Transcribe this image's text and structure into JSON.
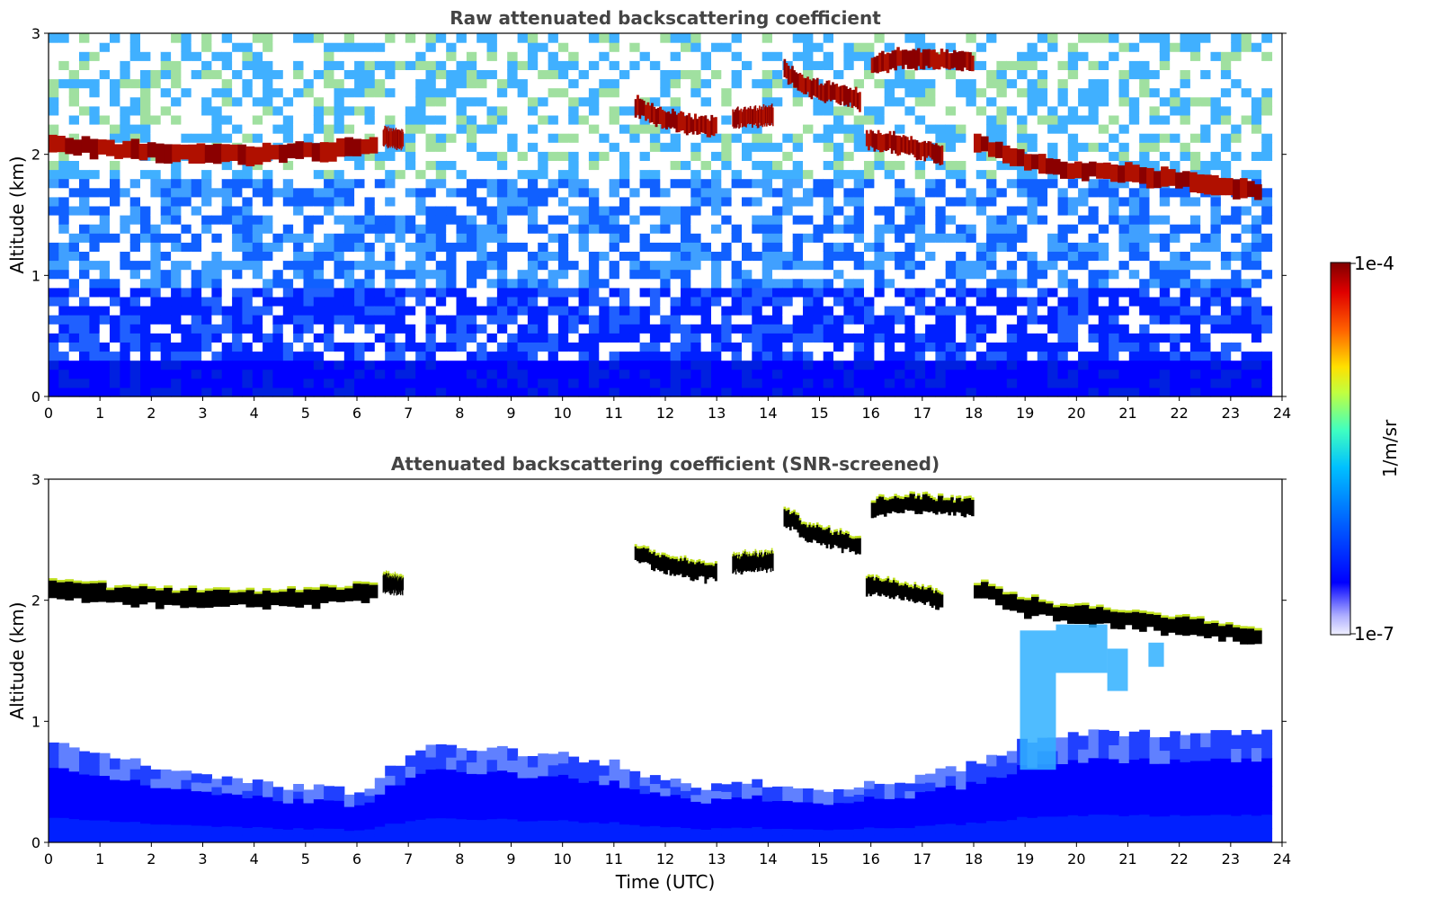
{
  "chart_data": [
    {
      "type": "heatmap",
      "title": "Raw attenuated backscattering coefficient",
      "xlabel": "",
      "ylabel": "Altitude (km)",
      "xlim": [
        0,
        24
      ],
      "ylim": [
        0,
        3
      ],
      "x_ticks": [
        "0",
        "1",
        "2",
        "3",
        "4",
        "5",
        "6",
        "7",
        "8",
        "9",
        "10",
        "11",
        "12",
        "13",
        "14",
        "15",
        "16",
        "17",
        "18",
        "19",
        "20",
        "21",
        "22",
        "23",
        "24"
      ],
      "y_ticks": [
        "0",
        "1",
        "2",
        "3"
      ],
      "grid": false,
      "cloud_layers": [
        {
          "start": 0.0,
          "end": 6.4,
          "altitude_km": [
            2.1,
            2.05,
            2.02,
            2.0,
            2.0,
            2.03,
            2.07
          ]
        },
        {
          "start": 6.5,
          "end": 6.9,
          "altitude_km": [
            2.15,
            2.12
          ]
        },
        {
          "start": 11.4,
          "end": 13.0,
          "altitude_km": [
            2.4,
            2.3,
            2.25,
            2.22
          ]
        },
        {
          "start": 13.3,
          "end": 14.1,
          "altitude_km": [
            2.3,
            2.32
          ]
        },
        {
          "start": 14.3,
          "end": 15.8,
          "altitude_km": [
            2.7,
            2.55,
            2.5,
            2.45
          ]
        },
        {
          "start": 15.9,
          "end": 17.4,
          "altitude_km": [
            2.12,
            2.1,
            2.05,
            2.0
          ]
        },
        {
          "start": 16.0,
          "end": 18.0,
          "altitude_km": [
            2.75,
            2.8,
            2.78,
            2.76
          ]
        },
        {
          "start": 18.0,
          "end": 23.6,
          "altitude_km": [
            2.1,
            1.95,
            1.88,
            1.85,
            1.8,
            1.75,
            1.7
          ]
        }
      ]
    },
    {
      "type": "heatmap",
      "title": "Attenuated backscattering coefficient (SNR-screened)",
      "xlabel": "Time (UTC)",
      "ylabel": "Altitude (km)",
      "xlim": [
        0,
        24
      ],
      "ylim": [
        0,
        3
      ],
      "x_ticks": [
        "0",
        "1",
        "2",
        "3",
        "4",
        "5",
        "6",
        "7",
        "8",
        "9",
        "10",
        "11",
        "12",
        "13",
        "14",
        "15",
        "16",
        "17",
        "18",
        "19",
        "20",
        "21",
        "22",
        "23",
        "24"
      ],
      "y_ticks": [
        "0",
        "1",
        "2",
        "3"
      ],
      "grid": false,
      "boundary_layer_top_km": [
        0.8,
        0.72,
        0.62,
        0.55,
        0.5,
        0.45,
        0.42,
        0.75,
        0.8,
        0.75,
        0.72,
        0.65,
        0.5,
        0.45,
        0.5,
        0.45,
        0.48,
        0.55,
        0.65,
        0.85,
        0.9,
        0.9,
        0.88,
        0.9,
        0.9
      ]
    }
  ],
  "colorbar": {
    "label": "1/m/sr",
    "max_label": "1e-4",
    "min_label": "1e-7",
    "colormap": "jet",
    "scale": "log",
    "colors": [
      "#f0f0ff",
      "#b0b0ff",
      "#0000ff",
      "#0060ff",
      "#00c0ff",
      "#40ffc0",
      "#c0ff40",
      "#ffe000",
      "#ff6000",
      "#e00000",
      "#800000"
    ]
  }
}
